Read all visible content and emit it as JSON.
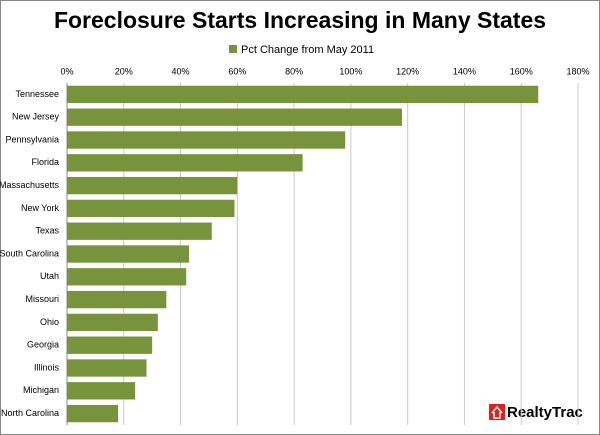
{
  "chart_data": {
    "type": "barh",
    "title": "Foreclosure Starts Increasing in Many States",
    "categories": [
      "Tennessee",
      "New Jersey",
      "Pennsylvania",
      "Florida",
      "Massachusetts",
      "New York",
      "Texas",
      "South Carolina",
      "Utah",
      "Missouri",
      "Ohio",
      "Georgia",
      "Illinois",
      "Michigan",
      "North Carolina"
    ],
    "series": [
      {
        "name": "Pct Change from May 2011",
        "color": "#77933c",
        "values": [
          166,
          118,
          98,
          83,
          60,
          59,
          51,
          43,
          42,
          35,
          32,
          30,
          28,
          24,
          18
        ]
      }
    ],
    "xlim": [
      0,
      180
    ],
    "xticks": [
      {
        "value": 0,
        "label": "0%"
      },
      {
        "value": 20,
        "label": "20%"
      },
      {
        "value": 40,
        "label": "40%"
      },
      {
        "value": 60,
        "label": "60%"
      },
      {
        "value": 80,
        "label": "80%"
      },
      {
        "value": 100,
        "label": "100%"
      },
      {
        "value": 120,
        "label": "120%"
      },
      {
        "value": 140,
        "label": "140%"
      },
      {
        "value": 160,
        "label": "160%"
      },
      {
        "value": 180,
        "label": "180%"
      }
    ],
    "grid": true,
    "legend": "top",
    "logo": "RealtyTrac"
  }
}
